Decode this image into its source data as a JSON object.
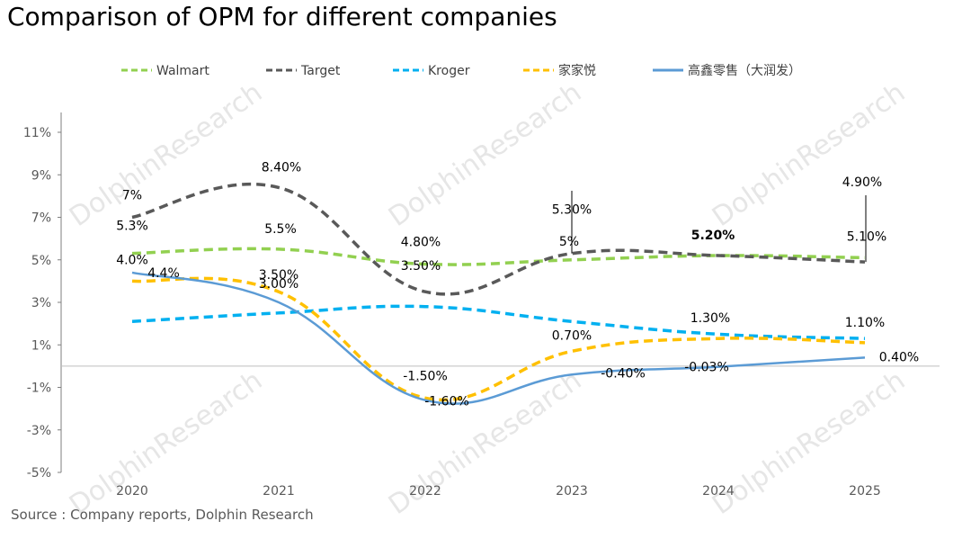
{
  "title": "Comparison of OPM for different companies",
  "source": "Source : Company reports, Dolphin Research",
  "watermark": "DolphinResearch",
  "chart_data": {
    "type": "line",
    "categories": [
      "2020",
      "2021",
      "2022",
      "2023",
      "2024",
      "2025"
    ],
    "yticks": [
      "11%",
      "9%",
      "7%",
      "5%",
      "3%",
      "1%",
      "-1%",
      "-3%",
      "-5%"
    ],
    "ylim": [
      -5,
      11
    ],
    "grid": false,
    "legend_position": "top",
    "series": [
      {
        "name": "Walmart",
        "color": "#92d050",
        "dash": true,
        "values": [
          5.3,
          5.5,
          4.8,
          5.0,
          5.2,
          5.1
        ],
        "labels": [
          "5.3%",
          "5.5%",
          "4.80%",
          "5%",
          "5.20%",
          "5.10%"
        ]
      },
      {
        "name": "Target",
        "color": "#595959",
        "dash": true,
        "values": [
          7.0,
          8.4,
          3.5,
          5.3,
          5.2,
          4.9
        ],
        "labels": [
          "7%",
          "8.40%",
          "3.50%",
          "5.30%",
          "",
          "4.90%"
        ]
      },
      {
        "name": "Kroger",
        "color": "#00b0f0",
        "dash": true,
        "values": [
          2.1,
          2.5,
          2.8,
          2.1,
          1.5,
          1.3
        ],
        "labels": [
          "",
          "",
          "",
          "",
          "",
          ""
        ]
      },
      {
        "name": "家家悦",
        "color": "#ffc000",
        "dash": true,
        "values": [
          4.0,
          3.5,
          -1.5,
          0.7,
          1.3,
          1.1
        ],
        "labels": [
          "4.0%",
          "3.50%",
          "-1.50%",
          "0.70%",
          "1.30%",
          "1.10%"
        ]
      },
      {
        "name": "高鑫零售（大润发）",
        "color": "#5b9bd5",
        "dash": false,
        "values": [
          4.4,
          3.0,
          -1.6,
          -0.4,
          -0.03,
          0.4
        ],
        "labels": [
          "4.4%",
          "3.00%",
          "-1.60%",
          "-0.40%",
          "-0.03%",
          "0.40%"
        ]
      }
    ]
  }
}
